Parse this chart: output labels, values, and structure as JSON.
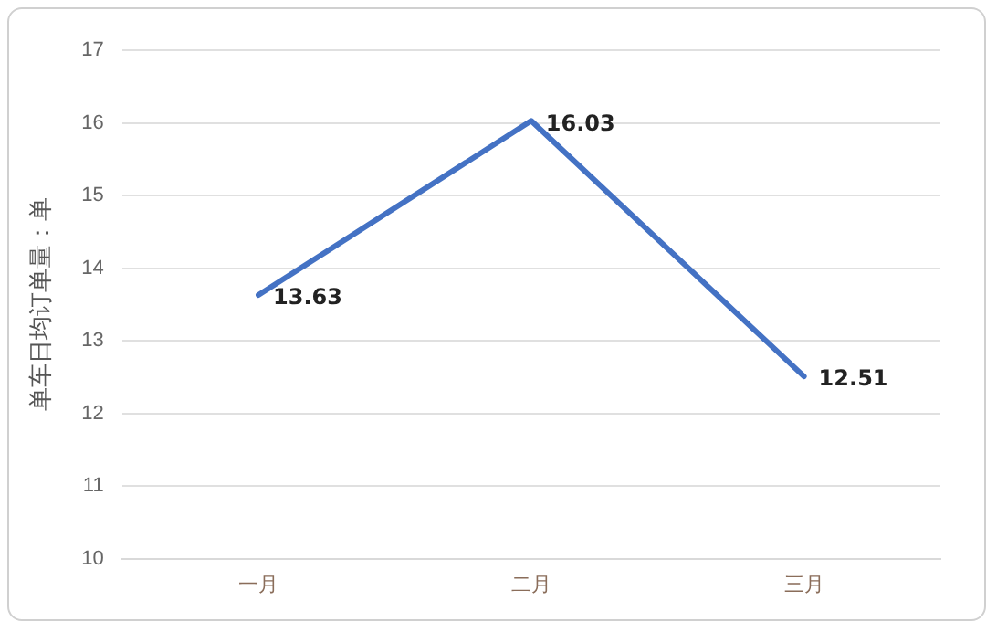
{
  "chart_data": {
    "type": "line",
    "ylabel": "单车日均订单量：单",
    "categories": [
      "一月",
      "二月",
      "三月"
    ],
    "series": [
      {
        "color": "#4472c4",
        "values": [
          13.63,
          16.03,
          12.51
        ]
      }
    ],
    "ylim": [
      10,
      17
    ],
    "yticks": [
      10,
      11,
      12,
      13,
      14,
      15,
      16,
      17
    ],
    "grid": "y",
    "data_labels": true,
    "marker": "none",
    "line_style": "solid",
    "legend": false
  }
}
